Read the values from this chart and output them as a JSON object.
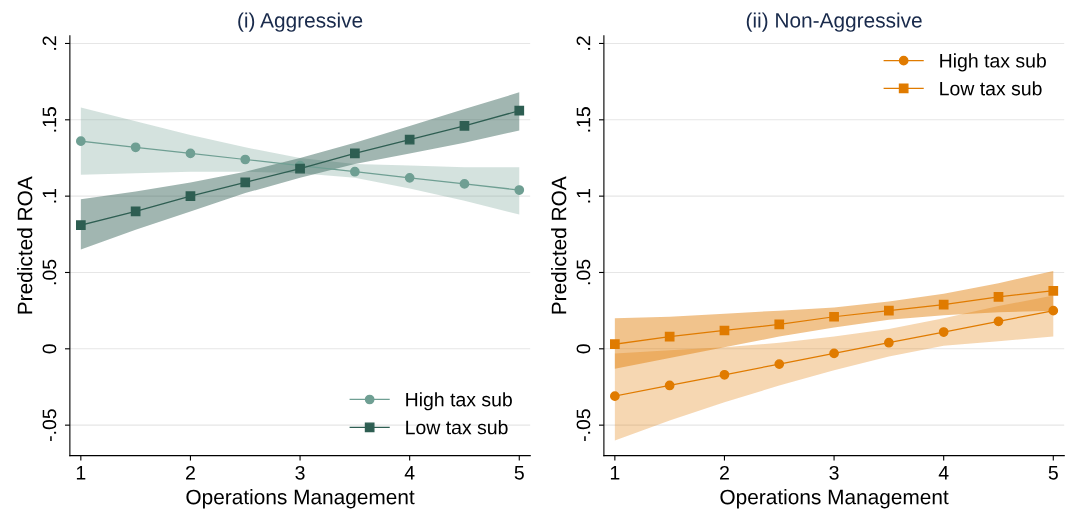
{
  "chart_data": [
    {
      "type": "line",
      "title": "(i) Aggressive",
      "xlabel": "Operations Management",
      "ylabel": "Predicted ROA",
      "x": [
        1,
        1.5,
        2,
        2.5,
        3,
        3.5,
        4,
        4.5,
        5
      ],
      "xlim": [
        0.9,
        5.1
      ],
      "xticks": [
        1,
        2,
        3,
        4,
        5
      ],
      "ylim": [
        -0.07,
        0.205
      ],
      "yticks": [
        {
          "value": -0.05,
          "label": "-.05"
        },
        0,
        {
          "value": 0.05,
          "label": ".05"
        },
        {
          "value": 0.1,
          "label": ".1"
        },
        {
          "value": 0.15,
          "label": ".15"
        },
        {
          "value": 0.2,
          "label": ".2"
        }
      ],
      "grid": "y",
      "legend": "bottom right",
      "line_style": "solid",
      "series": [
        {
          "name": "High tax sub",
          "color": "#6f9f93",
          "marker": "circle",
          "values": [
            0.136,
            0.132,
            0.128,
            0.124,
            0.12,
            0.116,
            0.112,
            0.108,
            0.104
          ],
          "lower": [
            0.114,
            0.115,
            0.116,
            0.116,
            0.115,
            0.112,
            0.105,
            0.097,
            0.088
          ],
          "upper": [
            0.158,
            0.149,
            0.14,
            0.132,
            0.125,
            0.121,
            0.12,
            0.119,
            0.119
          ]
        },
        {
          "name": "Low tax sub",
          "color": "#2e5e52",
          "marker": "square",
          "values": [
            0.081,
            0.09,
            0.1,
            0.109,
            0.118,
            0.128,
            0.137,
            0.146,
            0.156
          ],
          "lower": [
            0.065,
            0.078,
            0.09,
            0.102,
            0.112,
            0.121,
            0.128,
            0.135,
            0.143
          ],
          "upper": [
            0.098,
            0.103,
            0.109,
            0.116,
            0.125,
            0.135,
            0.146,
            0.157,
            0.168
          ]
        }
      ]
    },
    {
      "type": "line",
      "title": "(ii) Non-Aggressive",
      "xlabel": "Operations Management",
      "ylabel": "Predicted ROA",
      "x": [
        1,
        1.5,
        2,
        2.5,
        3,
        3.5,
        4,
        4.5,
        5
      ],
      "xlim": [
        0.9,
        5.1
      ],
      "xticks": [
        1,
        2,
        3,
        4,
        5
      ],
      "ylim": [
        -0.07,
        0.205
      ],
      "yticks": [
        {
          "value": -0.05,
          "label": "-.05"
        },
        0,
        {
          "value": 0.05,
          "label": ".05"
        },
        {
          "value": 0.1,
          "label": ".1"
        },
        {
          "value": 0.15,
          "label": ".15"
        },
        {
          "value": 0.2,
          "label": ".2"
        }
      ],
      "grid": "y",
      "legend": "top right",
      "line_style": "solid",
      "series": [
        {
          "name": "High tax sub",
          "color": "#e07b00",
          "marker": "circle",
          "values": [
            -0.031,
            -0.024,
            -0.017,
            -0.01,
            -0.003,
            0.004,
            0.011,
            0.018,
            0.025
          ],
          "lower": [
            -0.06,
            -0.047,
            -0.035,
            -0.024,
            -0.014,
            -0.005,
            0.002,
            0.005,
            0.008
          ],
          "upper": [
            -0.003,
            -0.001,
            0.001,
            0.004,
            0.008,
            0.013,
            0.02,
            0.028,
            0.035
          ]
        },
        {
          "name": "Low tax sub",
          "color": "#e07b00",
          "marker": "square",
          "values": [
            0.003,
            0.008,
            0.012,
            0.016,
            0.021,
            0.025,
            0.029,
            0.034,
            0.038
          ],
          "lower": [
            -0.013,
            -0.006,
            0.001,
            0.008,
            0.014,
            0.019,
            0.022,
            0.024,
            0.025
          ],
          "upper": [
            0.02,
            0.021,
            0.023,
            0.025,
            0.027,
            0.031,
            0.036,
            0.043,
            0.051
          ]
        }
      ]
    }
  ]
}
